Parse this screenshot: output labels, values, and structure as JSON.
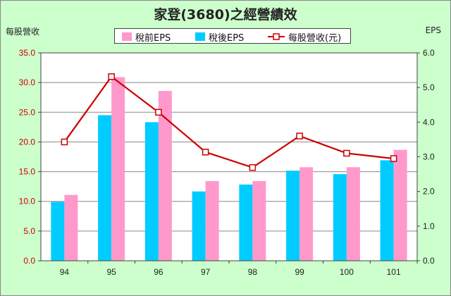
{
  "chart_data": {
    "type": "bar",
    "title": "家登(3680)之經營績效",
    "ylabel_left": "每股營收",
    "ylabel_right": "EPS",
    "categories": [
      "94",
      "95",
      "96",
      "97",
      "98",
      "99",
      "100",
      "101"
    ],
    "series": [
      {
        "name": "稅後EPS",
        "type": "bar",
        "axis": "right",
        "color": "#00ccff",
        "values": [
          1.7,
          4.2,
          4.0,
          2.0,
          2.2,
          2.6,
          2.5,
          2.9
        ]
      },
      {
        "name": "稅前EPS",
        "type": "bar",
        "axis": "right",
        "color": "#ff99cc",
        "values": [
          1.9,
          5.3,
          4.9,
          2.3,
          2.3,
          2.7,
          2.7,
          3.2
        ]
      },
      {
        "name": "每股營收(元)",
        "type": "line",
        "axis": "left",
        "color": "#cc0000",
        "values": [
          20.0,
          31.0,
          25.0,
          18.3,
          15.7,
          21.0,
          18.1,
          17.2
        ]
      }
    ],
    "ylim_left": [
      0,
      35
    ],
    "ylim_right": [
      0,
      6
    ],
    "yticks_left": [
      "0.0",
      "5.0",
      "10.0",
      "15.0",
      "20.0",
      "25.0",
      "30.0",
      "35.0"
    ],
    "yticks_right": [
      "0.0",
      "1.0",
      "2.0",
      "3.0",
      "4.0",
      "5.0",
      "6.0"
    ],
    "grid": true,
    "legend": "top-center"
  },
  "legend_items": [
    "稅前EPS",
    "稅後EPS",
    "每股營收(元)"
  ]
}
